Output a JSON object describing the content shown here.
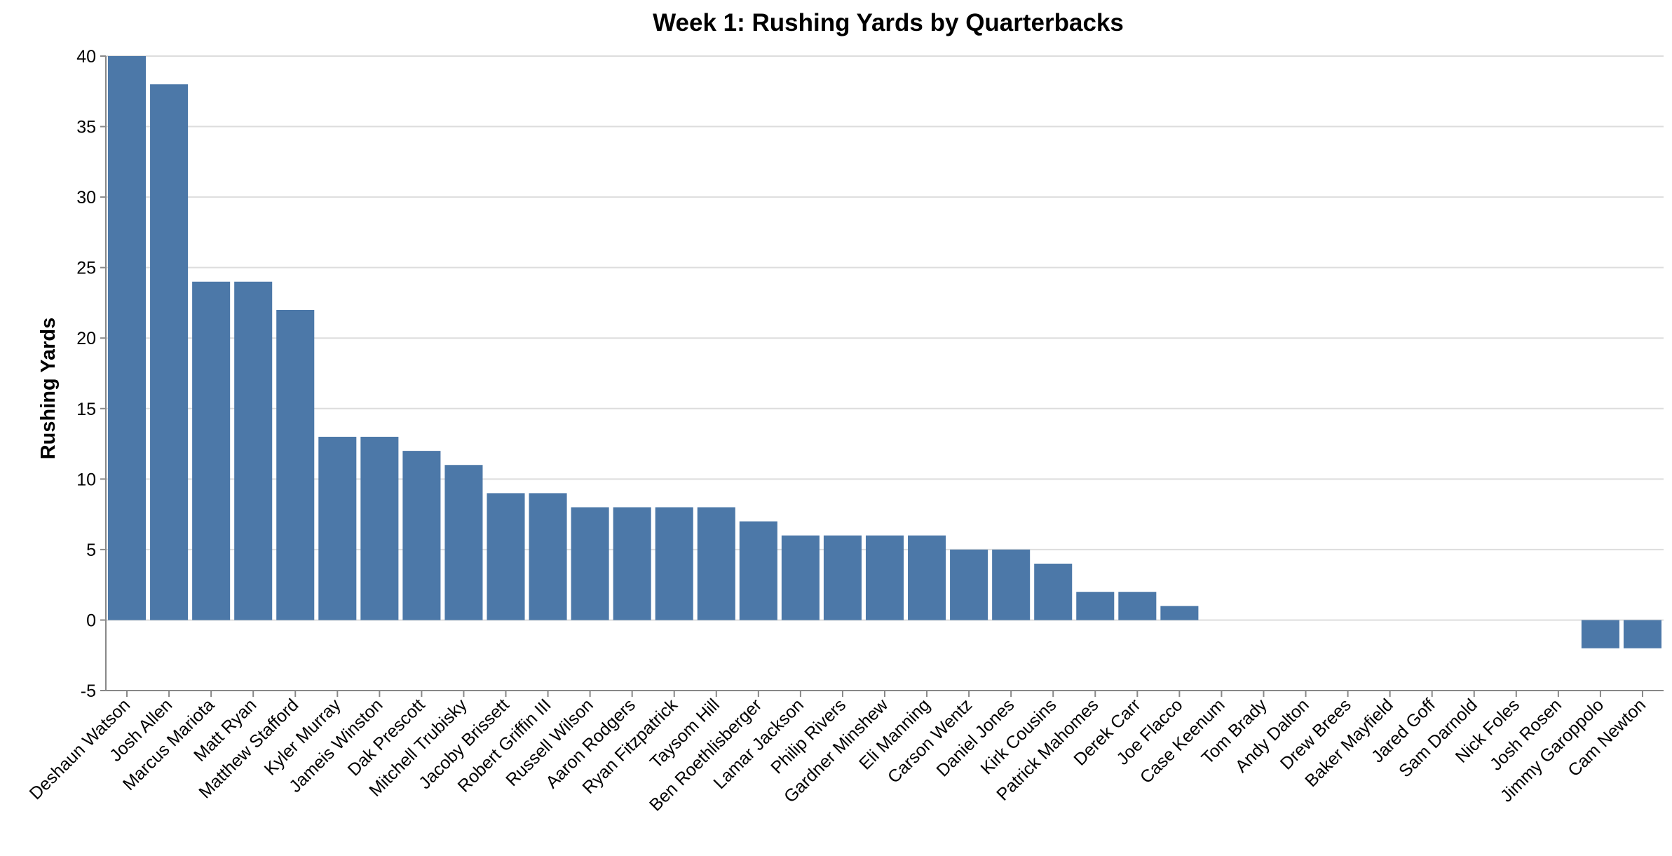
{
  "chart_data": {
    "type": "bar",
    "title": "Week 1: Rushing Yards by Quarterbacks",
    "xlabel": "",
    "ylabel": "Rushing Yards",
    "ylim": [
      -5,
      40
    ],
    "yticks": [
      -5,
      0,
      5,
      10,
      15,
      20,
      25,
      30,
      35,
      40
    ],
    "grid": true,
    "bar_color": "#4c78a8",
    "categories": [
      "Deshaun Watson",
      "Josh Allen",
      "Marcus Mariota",
      "Matt Ryan",
      "Matthew Stafford",
      "Kyler Murray",
      "Jameis Winston",
      "Dak Prescott",
      "Mitchell Trubisky",
      "Jacoby Brissett",
      "Robert Griffin III",
      "Russell Wilson",
      "Aaron Rodgers",
      "Ryan Fitzpatrick",
      "Taysom Hill",
      "Ben Roethlisberger",
      "Lamar Jackson",
      "Philip Rivers",
      "Gardner Minshew",
      "Eli Manning",
      "Carson Wentz",
      "Daniel Jones",
      "Kirk Cousins",
      "Patrick Mahomes",
      "Derek Carr",
      "Joe Flacco",
      "Case Keenum",
      "Tom Brady",
      "Andy Dalton",
      "Drew Brees",
      "Baker Mayfield",
      "Jared Goff",
      "Sam Darnold",
      "Nick Foles",
      "Josh Rosen",
      "Jimmy Garoppolo",
      "Cam Newton"
    ],
    "values": [
      40,
      38,
      24,
      24,
      22,
      13,
      13,
      12,
      11,
      9,
      9,
      8,
      8,
      8,
      8,
      7,
      6,
      6,
      6,
      6,
      5,
      5,
      4,
      2,
      2,
      1,
      0,
      0,
      0,
      0,
      0,
      0,
      0,
      0,
      0,
      -2,
      -2
    ]
  }
}
